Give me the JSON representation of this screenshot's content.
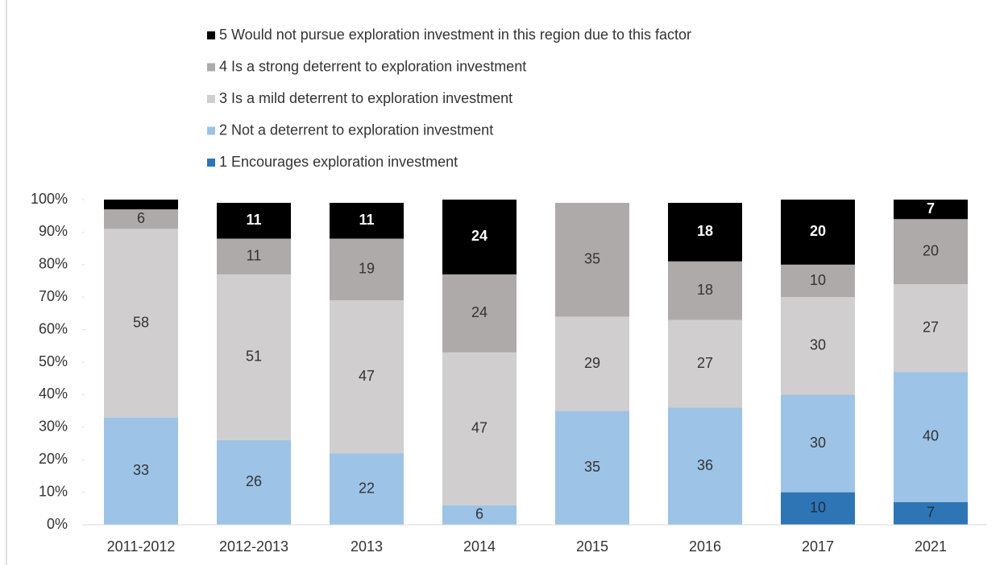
{
  "chart_data": {
    "type": "bar",
    "stacked": true,
    "categories": [
      "2011-2012",
      "2012-2013",
      "2013",
      "2014",
      "2015",
      "2016",
      "2017",
      "2021"
    ],
    "series": [
      {
        "name": "1 Encourages exploration investment",
        "color": "#2e75b6",
        "values": [
          null,
          null,
          null,
          null,
          null,
          null,
          10,
          7
        ]
      },
      {
        "name": "2 Not a deterrent to exploration investment",
        "color": "#9dc3e6",
        "values": [
          33,
          26,
          22,
          6,
          35,
          36,
          30,
          40
        ]
      },
      {
        "name": "3 Is a mild deterrent to exploration investment",
        "color": "#d0cece",
        "values": [
          58,
          51,
          47,
          47,
          29,
          27,
          30,
          27
        ]
      },
      {
        "name": "4 Is a strong deterrent to exploration investment",
        "color": "#aeaaaa",
        "values": [
          6,
          11,
          19,
          24,
          35,
          18,
          10,
          20
        ]
      },
      {
        "name": "5 Would not pursue exploration investment in this region due to this factor",
        "color": "#000000",
        "values": [
          3,
          11,
          11,
          24,
          null,
          18,
          20,
          7
        ],
        "value_labels": [
          null,
          "11",
          "11",
          "24",
          null,
          "18",
          "20",
          "7"
        ]
      }
    ],
    "ylim": [
      0,
      100
    ],
    "yticks": [
      {
        "value": 0,
        "label": "0%"
      },
      {
        "value": 10,
        "label": "10%"
      },
      {
        "value": 20,
        "label": "20%"
      },
      {
        "value": 30,
        "label": "30%"
      },
      {
        "value": 40,
        "label": "40%"
      },
      {
        "value": 50,
        "label": "50%"
      },
      {
        "value": 60,
        "label": "60%"
      },
      {
        "value": 70,
        "label": "70%"
      },
      {
        "value": 80,
        "label": "80%"
      },
      {
        "value": 90,
        "label": "90%"
      },
      {
        "value": 100,
        "label": "100%"
      }
    ],
    "legend": "top"
  }
}
